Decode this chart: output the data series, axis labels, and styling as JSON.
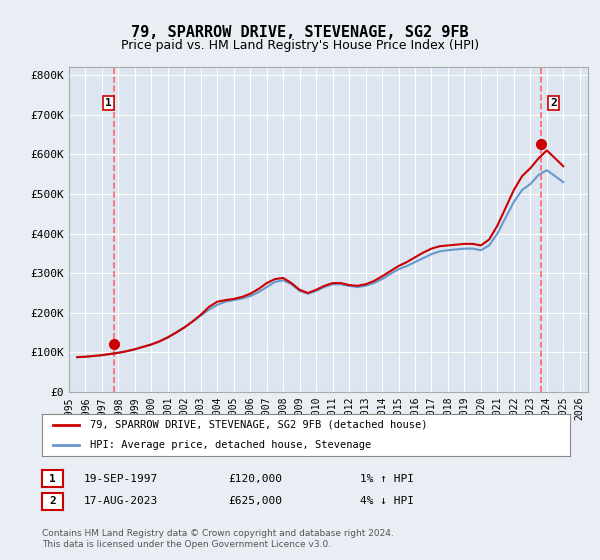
{
  "title": "79, SPARROW DRIVE, STEVENAGE, SG2 9FB",
  "subtitle": "Price paid vs. HM Land Registry's House Price Index (HPI)",
  "ylabel_ticks": [
    "£0",
    "£100K",
    "£200K",
    "£300K",
    "£400K",
    "£500K",
    "£600K",
    "£700K",
    "£800K"
  ],
  "ytick_values": [
    0,
    100000,
    200000,
    300000,
    400000,
    500000,
    600000,
    700000,
    800000
  ],
  "ylim": [
    0,
    820000
  ],
  "xlim_start": 1995.5,
  "xlim_end": 2026.5,
  "xticks": [
    1995,
    1996,
    1997,
    1998,
    1999,
    2000,
    2001,
    2002,
    2003,
    2004,
    2005,
    2006,
    2007,
    2008,
    2009,
    2010,
    2011,
    2012,
    2013,
    2014,
    2015,
    2016,
    2017,
    2018,
    2019,
    2020,
    2021,
    2022,
    2023,
    2024,
    2025,
    2026
  ],
  "hpi_color": "#6699cc",
  "price_color": "#cc0000",
  "vline_color": "#ff6666",
  "background_color": "#e8eef4",
  "plot_bg_color": "#dde6f0",
  "grid_color": "#ffffff",
  "marker1_year": 1997.72,
  "marker1_value": 120000,
  "marker2_year": 2023.63,
  "marker2_value": 625000,
  "annotation1_label": "1",
  "annotation2_label": "2",
  "legend_line1": "79, SPARROW DRIVE, STEVENAGE, SG2 9FB (detached house)",
  "legend_line2": "HPI: Average price, detached house, Stevenage",
  "table_row1": [
    "1",
    "19-SEP-1997",
    "£120,000",
    "1% ↑ HPI"
  ],
  "table_row2": [
    "2",
    "17-AUG-2023",
    "£625,000",
    "4% ↓ HPI"
  ],
  "footer": "Contains HM Land Registry data © Crown copyright and database right 2024.\nThis data is licensed under the Open Government Licence v3.0.",
  "hpi_data_x": [
    1995.5,
    1996.0,
    1996.5,
    1997.0,
    1997.5,
    1998.0,
    1998.5,
    1999.0,
    1999.5,
    2000.0,
    2000.5,
    2001.0,
    2001.5,
    2002.0,
    2002.5,
    2003.0,
    2003.5,
    2004.0,
    2004.5,
    2005.0,
    2005.5,
    2006.0,
    2006.5,
    2007.0,
    2007.5,
    2008.0,
    2008.5,
    2009.0,
    2009.5,
    2010.0,
    2010.5,
    2011.0,
    2011.5,
    2012.0,
    2012.5,
    2013.0,
    2013.5,
    2014.0,
    2014.5,
    2015.0,
    2015.5,
    2016.0,
    2016.5,
    2017.0,
    2017.5,
    2018.0,
    2018.5,
    2019.0,
    2019.5,
    2020.0,
    2020.5,
    2021.0,
    2021.5,
    2022.0,
    2022.5,
    2023.0,
    2023.5,
    2024.0,
    2024.5,
    2025.0
  ],
  "hpi_data_y": [
    88000,
    89000,
    91000,
    93000,
    96000,
    99000,
    103000,
    108000,
    114000,
    120000,
    128000,
    138000,
    150000,
    163000,
    178000,
    193000,
    208000,
    220000,
    228000,
    232000,
    236000,
    242000,
    252000,
    265000,
    278000,
    282000,
    272000,
    255000,
    248000,
    255000,
    265000,
    272000,
    272000,
    268000,
    265000,
    268000,
    275000,
    285000,
    298000,
    310000,
    318000,
    328000,
    338000,
    348000,
    355000,
    358000,
    360000,
    362000,
    362000,
    358000,
    370000,
    400000,
    440000,
    480000,
    510000,
    525000,
    548000,
    560000,
    545000,
    530000
  ],
  "price_data_x": [
    1995.5,
    1996.0,
    1996.5,
    1997.0,
    1997.5,
    1998.0,
    1998.5,
    1999.0,
    1999.5,
    2000.0,
    2000.5,
    2001.0,
    2001.5,
    2002.0,
    2002.5,
    2003.0,
    2003.5,
    2004.0,
    2004.5,
    2005.0,
    2005.5,
    2006.0,
    2006.5,
    2007.0,
    2007.5,
    2008.0,
    2008.5,
    2009.0,
    2009.5,
    2010.0,
    2010.5,
    2011.0,
    2011.5,
    2012.0,
    2012.5,
    2013.0,
    2013.5,
    2014.0,
    2014.5,
    2015.0,
    2015.5,
    2016.0,
    2016.5,
    2017.0,
    2017.5,
    2018.0,
    2018.5,
    2019.0,
    2019.5,
    2020.0,
    2020.5,
    2021.0,
    2021.5,
    2022.0,
    2022.5,
    2023.0,
    2023.5,
    2024.0,
    2024.5,
    2025.0
  ],
  "price_data_y": [
    88000,
    89000,
    91000,
    93000,
    96000,
    99000,
    103000,
    108000,
    114000,
    120000,
    128000,
    138000,
    150000,
    163000,
    178000,
    195000,
    215000,
    228000,
    232000,
    235000,
    240000,
    248000,
    260000,
    275000,
    285000,
    288000,
    275000,
    258000,
    250000,
    258000,
    268000,
    275000,
    275000,
    270000,
    268000,
    272000,
    280000,
    292000,
    305000,
    318000,
    328000,
    340000,
    352000,
    362000,
    368000,
    370000,
    372000,
    374000,
    374000,
    370000,
    385000,
    420000,
    465000,
    510000,
    545000,
    565000,
    590000,
    610000,
    590000,
    570000
  ]
}
